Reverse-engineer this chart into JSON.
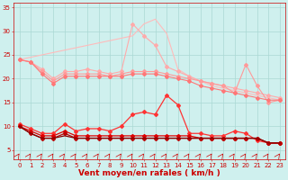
{
  "x": [
    0,
    1,
    2,
    3,
    4,
    5,
    6,
    7,
    8,
    9,
    10,
    11,
    12,
    13,
    14,
    15,
    16,
    17,
    18,
    19,
    20,
    21,
    22,
    23
  ],
  "series": [
    {
      "name": "line_lightest_no_marker",
      "color": "#ffbbbb",
      "linewidth": 0.8,
      "marker": null,
      "values": [
        24.0,
        24.5,
        25.0,
        25.5,
        26.0,
        26.5,
        27.0,
        27.5,
        28.0,
        28.5,
        29.0,
        31.5,
        32.5,
        29.5,
        22.0,
        20.5,
        19.5,
        18.5,
        18.0,
        17.5,
        17.0,
        16.5,
        16.0,
        15.5
      ]
    },
    {
      "name": "line_light_marker",
      "color": "#ffaaaa",
      "linewidth": 0.8,
      "marker": "D",
      "markersize": 2.0,
      "values": [
        24.0,
        23.5,
        22.0,
        20.0,
        21.5,
        21.5,
        22.0,
        21.5,
        21.0,
        21.5,
        31.5,
        29.0,
        27.0,
        22.5,
        21.5,
        20.5,
        19.5,
        19.0,
        18.5,
        18.0,
        17.5,
        17.0,
        16.5,
        16.0
      ]
    },
    {
      "name": "line_medlight_marker",
      "color": "#ff9999",
      "linewidth": 0.8,
      "marker": "D",
      "markersize": 2.0,
      "values": [
        24.0,
        23.5,
        21.5,
        19.5,
        21.0,
        21.0,
        21.0,
        21.0,
        20.5,
        21.0,
        21.5,
        21.5,
        21.5,
        21.0,
        20.5,
        20.0,
        19.5,
        19.0,
        18.5,
        17.0,
        23.0,
        18.5,
        15.0,
        15.5
      ]
    },
    {
      "name": "line_med_marker",
      "color": "#ff7777",
      "linewidth": 0.8,
      "marker": "D",
      "markersize": 2.0,
      "values": [
        24.0,
        23.5,
        21.0,
        19.0,
        20.5,
        20.5,
        20.5,
        20.5,
        20.5,
        20.5,
        21.0,
        21.0,
        21.0,
        20.5,
        20.0,
        19.5,
        18.5,
        18.0,
        17.5,
        17.0,
        16.5,
        16.0,
        15.5,
        15.5
      ]
    },
    {
      "name": "line_bright_marker",
      "color": "#ff3333",
      "linewidth": 0.9,
      "marker": "D",
      "markersize": 2.0,
      "values": [
        10.5,
        9.5,
        8.5,
        8.5,
        10.5,
        9.0,
        9.5,
        9.5,
        9.0,
        10.0,
        12.5,
        13.0,
        12.5,
        16.5,
        14.5,
        8.5,
        8.5,
        8.0,
        8.0,
        9.0,
        8.5,
        7.0,
        6.5,
        6.5
      ]
    },
    {
      "name": "line_red_marker",
      "color": "#dd0000",
      "linewidth": 0.9,
      "marker": "D",
      "markersize": 2.0,
      "values": [
        10.0,
        9.0,
        8.0,
        8.0,
        9.0,
        8.0,
        8.0,
        8.0,
        8.0,
        8.0,
        8.0,
        8.0,
        8.0,
        8.0,
        8.0,
        8.0,
        7.5,
        7.5,
        7.5,
        7.5,
        7.5,
        7.5,
        6.5,
        6.5
      ]
    },
    {
      "name": "line_darkred_marker",
      "color": "#bb0000",
      "linewidth": 0.9,
      "marker": "D",
      "markersize": 2.0,
      "values": [
        10.0,
        8.5,
        7.5,
        7.5,
        8.5,
        7.5,
        7.5,
        7.5,
        7.5,
        7.5,
        7.5,
        7.5,
        7.5,
        7.5,
        7.5,
        7.5,
        7.5,
        7.5,
        7.5,
        7.5,
        7.5,
        7.5,
        6.5,
        6.5
      ]
    },
    {
      "name": "line_darkest_straight",
      "color": "#880000",
      "linewidth": 0.9,
      "marker": null,
      "values": [
        10.0,
        8.5,
        7.5,
        7.5,
        8.0,
        7.5,
        7.5,
        7.5,
        7.5,
        7.5,
        7.5,
        7.5,
        7.5,
        7.5,
        7.5,
        7.5,
        7.5,
        7.5,
        7.5,
        7.5,
        7.5,
        7.5,
        6.5,
        6.5
      ]
    }
  ],
  "wind_arrows": {
    "y": 3.5,
    "color": "#cc0000"
  },
  "xlabel": "Vent moyen/en rafales ( km/h )",
  "xlabel_color": "#cc0000",
  "xlabel_fontsize": 6.5,
  "ylim": [
    3,
    36
  ],
  "yticks": [
    5,
    10,
    15,
    20,
    25,
    30,
    35
  ],
  "xticks": [
    0,
    1,
    2,
    3,
    4,
    5,
    6,
    7,
    8,
    9,
    10,
    11,
    12,
    13,
    14,
    15,
    16,
    17,
    18,
    19,
    20,
    21,
    22,
    23
  ],
  "bg_color": "#cff0ee",
  "grid_color": "#aad8d4",
  "tick_color": "#cc0000",
  "tick_fontsize": 5.0,
  "spine_color": "#cc0000"
}
